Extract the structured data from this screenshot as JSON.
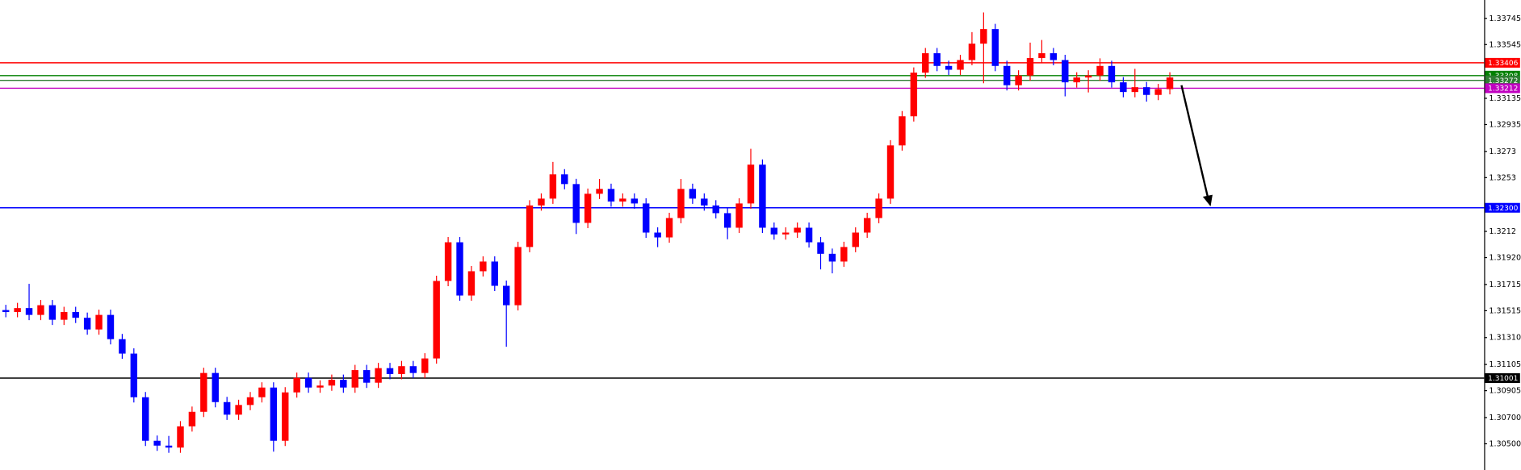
{
  "chart_data": {
    "type": "candlestick",
    "up_color": "#ff0000",
    "down_color": "#0000ff",
    "ylim": [
      1.303,
      1.33885
    ],
    "yticks": [
      1.33745,
      1.33545,
      1.33135,
      1.32935,
      1.3273,
      1.3253,
      1.3212,
      {
        "value": 1.3192,
        "label": "1.31920"
      },
      1.31715,
      1.31515,
      {
        "value": 1.3131,
        "label": "1.31310"
      },
      1.31105,
      1.30905,
      {
        "value": 1.307,
        "label": "1.30700"
      },
      {
        "value": 1.305,
        "label": "1.30500"
      }
    ],
    "levels": [
      {
        "value": 1.33406,
        "color": "#ff0000"
      },
      {
        "value": 1.33308,
        "color": "#008000"
      },
      {
        "value": 1.33272,
        "color": "#2e7d32"
      },
      {
        "value": 1.33212,
        "color": "#c000c0"
      },
      {
        "value": 1.323,
        "label": "1.32300",
        "color": "#0000ff"
      },
      {
        "value": 1.31001,
        "color": "#000000"
      }
    ],
    "ohlc": [
      [
        1.3152,
        1.3156,
        1.31465,
        1.31505
      ],
      [
        1.31505,
        1.31575,
        1.31465,
        1.31535
      ],
      [
        1.31535,
        1.3172,
        1.31443,
        1.31483
      ],
      [
        1.31483,
        1.31597,
        1.31443,
        1.31557
      ],
      [
        1.31557,
        1.31597,
        1.31406,
        1.31446
      ],
      [
        1.31446,
        1.31545,
        1.31406,
        1.31505
      ],
      [
        1.31505,
        1.31545,
        1.31421,
        1.31461
      ],
      [
        1.31461,
        1.31501,
        1.31332,
        1.31372
      ],
      [
        1.31372,
        1.31523,
        1.31332,
        1.31483
      ],
      [
        1.31483,
        1.31523,
        1.31258,
        1.31298
      ],
      [
        1.31298,
        1.31338,
        1.31148,
        1.31188
      ],
      [
        1.31188,
        1.31228,
        1.30815,
        1.30855
      ],
      [
        1.30855,
        1.30895,
        1.30483,
        1.30523
      ],
      [
        1.30523,
        1.30563,
        1.30446,
        1.30486
      ],
      [
        1.30486,
        1.3056,
        1.30431,
        1.30471
      ],
      [
        1.30471,
        1.30673,
        1.30431,
        1.30633
      ],
      [
        1.30633,
        1.30784,
        1.30593,
        1.30744
      ],
      [
        1.30744,
        1.3108,
        1.30704,
        1.3104
      ],
      [
        1.3104,
        1.3108,
        1.30778,
        1.30818
      ],
      [
        1.30818,
        1.30858,
        1.30682,
        1.30722
      ],
      [
        1.30722,
        1.30836,
        1.30682,
        1.30796
      ],
      [
        1.30796,
        1.30895,
        1.30756,
        1.30855
      ],
      [
        1.30855,
        1.30969,
        1.30815,
        1.30929
      ],
      [
        1.30929,
        1.30969,
        1.3044,
        1.30523
      ],
      [
        1.30523,
        1.30932,
        1.30483,
        1.30892
      ],
      [
        1.30892,
        1.31043,
        1.30852,
        1.31003
      ],
      [
        1.31003,
        1.31043,
        1.30889,
        1.30929
      ],
      [
        1.30929,
        1.30984,
        1.30889,
        1.30944
      ],
      [
        1.30944,
        1.31028,
        1.30904,
        1.30988
      ],
      [
        1.30988,
        1.31028,
        1.30889,
        1.30929
      ],
      [
        1.30929,
        1.31102,
        1.30889,
        1.31062
      ],
      [
        1.31062,
        1.31102,
        1.30926,
        1.30966
      ],
      [
        1.30966,
        1.31117,
        1.30926,
        1.31077
      ],
      [
        1.31077,
        1.31117,
        1.30992,
        1.31032
      ],
      [
        1.31032,
        1.31132,
        1.30992,
        1.31092
      ],
      [
        1.31092,
        1.31132,
        1.31,
        1.3104
      ],
      [
        1.3104,
        1.31191,
        1.31,
        1.31151
      ],
      [
        1.31151,
        1.31782,
        1.31111,
        1.31742
      ],
      [
        1.31742,
        1.32077,
        1.31702,
        1.32037
      ],
      [
        1.32037,
        1.32077,
        1.31591,
        1.31631
      ],
      [
        1.31631,
        1.31856,
        1.31591,
        1.31816
      ],
      [
        1.31816,
        1.3193,
        1.31776,
        1.3189
      ],
      [
        1.3189,
        1.3193,
        1.31665,
        1.31705
      ],
      [
        1.31705,
        1.31745,
        1.3124,
        1.31557
      ],
      [
        1.31557,
        1.32041,
        1.31517,
        1.32001
      ],
      [
        1.32001,
        1.32358,
        1.31961,
        1.32318
      ],
      [
        1.32318,
        1.3241,
        1.32278,
        1.3237
      ],
      [
        1.3237,
        1.3265,
        1.3233,
        1.32555
      ],
      [
        1.32555,
        1.32595,
        1.32441,
        1.32481
      ],
      [
        1.32481,
        1.32521,
        1.321,
        1.32185
      ],
      [
        1.32185,
        1.32447,
        1.32145,
        1.32407
      ],
      [
        1.32407,
        1.3252,
        1.32367,
        1.32444
      ],
      [
        1.32444,
        1.32484,
        1.32308,
        1.32348
      ],
      [
        1.32348,
        1.3241,
        1.32308,
        1.3237
      ],
      [
        1.3237,
        1.3241,
        1.32293,
        1.32333
      ],
      [
        1.32333,
        1.32373,
        1.32071,
        1.32111
      ],
      [
        1.32111,
        1.32151,
        1.32,
        1.32074
      ],
      [
        1.32074,
        1.32262,
        1.32034,
        1.32222
      ],
      [
        1.32222,
        1.3252,
        1.32182,
        1.32444
      ],
      [
        1.32444,
        1.32484,
        1.3233,
        1.3237
      ],
      [
        1.3237,
        1.3241,
        1.32278,
        1.32318
      ],
      [
        1.32318,
        1.32358,
        1.32219,
        1.32259
      ],
      [
        1.32259,
        1.32299,
        1.3206,
        1.32148
      ],
      [
        1.32148,
        1.32373,
        1.32108,
        1.32333
      ],
      [
        1.32333,
        1.3275,
        1.32293,
        1.32629
      ],
      [
        1.32629,
        1.32669,
        1.32108,
        1.32148
      ],
      [
        1.32148,
        1.32188,
        1.32057,
        1.32097
      ],
      [
        1.32097,
        1.32151,
        1.32057,
        1.32111
      ],
      [
        1.32111,
        1.32188,
        1.32071,
        1.32148
      ],
      [
        1.32148,
        1.32188,
        1.31997,
        1.32037
      ],
      [
        1.32037,
        1.32077,
        1.3183,
        1.31949
      ],
      [
        1.31949,
        1.31989,
        1.318,
        1.3189
      ],
      [
        1.3189,
        1.32041,
        1.3185,
        1.32001
      ],
      [
        1.32001,
        1.32151,
        1.31961,
        1.32111
      ],
      [
        1.32111,
        1.32262,
        1.32071,
        1.32222
      ],
      [
        1.32222,
        1.3241,
        1.32182,
        1.3237
      ],
      [
        1.3237,
        1.32816,
        1.3233,
        1.32776
      ],
      [
        1.32776,
        1.33038,
        1.32736,
        1.32998
      ],
      [
        1.32998,
        1.33371,
        1.32958,
        1.33331
      ],
      [
        1.33331,
        1.33519,
        1.33291,
        1.33479
      ],
      [
        1.33479,
        1.33519,
        1.33342,
        1.33382
      ],
      [
        1.33382,
        1.33422,
        1.33313,
        1.33353
      ],
      [
        1.33353,
        1.33467,
        1.33313,
        1.33427
      ],
      [
        1.33427,
        1.3364,
        1.33387,
        1.33552
      ],
      [
        1.33552,
        1.3379,
        1.3325,
        1.33663
      ],
      [
        1.33663,
        1.33703,
        1.33342,
        1.33382
      ],
      [
        1.33382,
        1.33422,
        1.33195,
        1.33235
      ],
      [
        1.33235,
        1.33349,
        1.33195,
        1.33309
      ],
      [
        1.33309,
        1.3356,
        1.33269,
        1.33442
      ],
      [
        1.33442,
        1.3358,
        1.33402,
        1.33479
      ],
      [
        1.33479,
        1.33519,
        1.33387,
        1.33427
      ],
      [
        1.33427,
        1.33467,
        1.3315,
        1.33257
      ],
      [
        1.33257,
        1.33334,
        1.33217,
        1.33294
      ],
      [
        1.33294,
        1.33349,
        1.3318,
        1.33309
      ],
      [
        1.33309,
        1.3344,
        1.33269,
        1.33382
      ],
      [
        1.33382,
        1.33422,
        1.33217,
        1.33257
      ],
      [
        1.33257,
        1.33297,
        1.33143,
        1.33183
      ],
      [
        1.33183,
        1.3336,
        1.33143,
        1.3322
      ],
      [
        1.3322,
        1.3326,
        1.3311,
        1.33161
      ],
      [
        1.33161,
        1.33245,
        1.33121,
        1.33205
      ],
      [
        1.33205,
        1.33334,
        1.33165,
        1.33294
      ]
    ]
  }
}
